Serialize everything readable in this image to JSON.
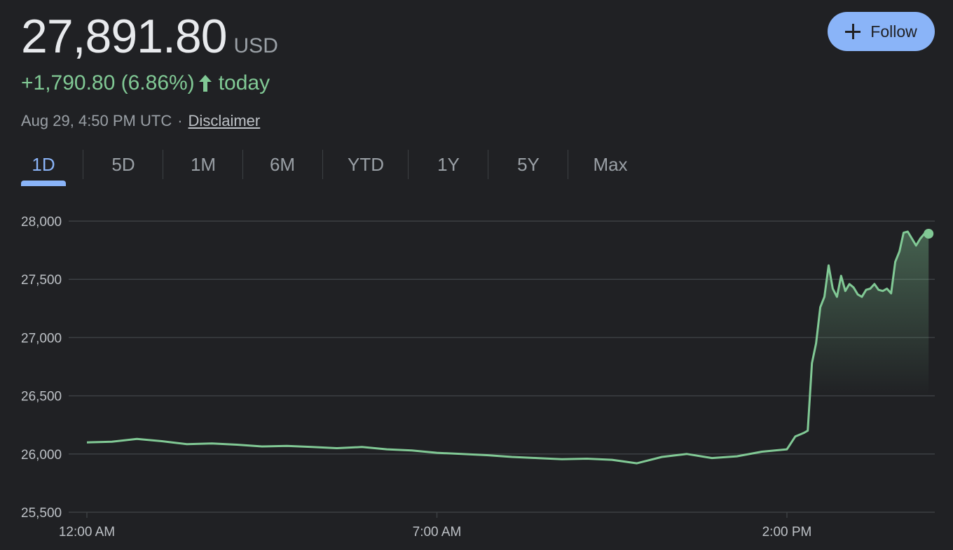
{
  "header": {
    "price": "27,891.80",
    "currency": "USD",
    "change": "+1,790.80 (6.86%)",
    "change_suffix": "today",
    "timestamp": "Aug 29, 4:50 PM UTC",
    "separator": "·",
    "disclaimer": "Disclaimer",
    "follow_label": "Follow"
  },
  "colors": {
    "background": "#202124",
    "positive": "#81c995",
    "accent": "#8ab4f8",
    "grid": "#3c4043",
    "muted_text": "#9aa0a6"
  },
  "tabs": [
    {
      "label": "1D",
      "active": true
    },
    {
      "label": "5D",
      "active": false
    },
    {
      "label": "1M",
      "active": false
    },
    {
      "label": "6M",
      "active": false
    },
    {
      "label": "YTD",
      "active": false
    },
    {
      "label": "1Y",
      "active": false
    },
    {
      "label": "5Y",
      "active": false
    },
    {
      "label": "Max",
      "active": false
    }
  ],
  "chart_data": {
    "type": "area",
    "title": "",
    "xlabel": "",
    "ylabel": "",
    "ylim": [
      25500,
      28000
    ],
    "xlim": [
      "00:00",
      "16:50"
    ],
    "y_ticks": [
      28000,
      27500,
      27000,
      26500,
      26000,
      25500
    ],
    "y_tick_labels": [
      "28,000",
      "27,500",
      "27,000",
      "26,500",
      "26,000",
      "25,500"
    ],
    "x_ticks": [
      "00:00",
      "07:00",
      "14:00"
    ],
    "x_tick_labels": [
      "12:00 AM",
      "7:00 AM",
      "2:00 PM"
    ],
    "grid": true,
    "legend": "none",
    "series": [
      {
        "x": [
          "00:00",
          "00:30",
          "01:00",
          "01:30",
          "02:00",
          "02:30",
          "03:00",
          "03:30",
          "04:00",
          "04:30",
          "05:00",
          "05:30",
          "06:00",
          "06:30",
          "07:00",
          "07:30",
          "08:00",
          "08:30",
          "09:00",
          "09:30",
          "10:00",
          "10:30",
          "11:00",
          "11:30",
          "12:00",
          "12:30",
          "13:00",
          "13:30",
          "14:00",
          "14:10",
          "14:20",
          "14:25",
          "14:30",
          "14:35",
          "14:40",
          "14:45",
          "14:50",
          "14:55",
          "15:00",
          "15:05",
          "15:10",
          "15:15",
          "15:20",
          "15:25",
          "15:30",
          "15:35",
          "15:40",
          "15:45",
          "15:50",
          "15:55",
          "16:00",
          "16:05",
          "16:10",
          "16:15",
          "16:20",
          "16:25",
          "16:30",
          "16:35",
          "16:40",
          "16:45",
          "16:50"
        ],
        "y": [
          26100,
          26105,
          26130,
          26110,
          26085,
          26090,
          26080,
          26065,
          26070,
          26060,
          26050,
          26060,
          26040,
          26030,
          26010,
          26000,
          25990,
          25975,
          25965,
          25955,
          25960,
          25950,
          25920,
          25975,
          26000,
          25965,
          25980,
          26020,
          26040,
          26150,
          26180,
          26200,
          26780,
          26950,
          27260,
          27350,
          27620,
          27420,
          27350,
          27530,
          27400,
          27460,
          27430,
          27370,
          27350,
          27410,
          27420,
          27460,
          27410,
          27400,
          27420,
          27380,
          27650,
          27740,
          27900,
          27910,
          27850,
          27790,
          27850,
          27891.8,
          27891.8
        ]
      }
    ]
  }
}
